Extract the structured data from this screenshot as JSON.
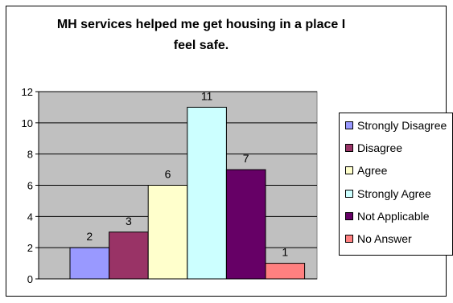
{
  "chart_data": {
    "type": "bar",
    "title": "MH services helped me get housing in a place I feel safe.",
    "categories": [
      "Strongly Disagree",
      "Disagree",
      "Agree",
      "Strongly Agree",
      "Not Applicable",
      "No Answer"
    ],
    "values": [
      2,
      3,
      6,
      11,
      7,
      1
    ],
    "data_labels": [
      "2",
      "3",
      "6",
      "11",
      "7",
      "1"
    ],
    "colors": [
      "#9999FF",
      "#993366",
      "#FFFFCC",
      "#CCFFFF",
      "#660066",
      "#FF8080"
    ],
    "ylim": [
      0,
      12
    ],
    "yticks": [
      0,
      2,
      4,
      6,
      8,
      10,
      12
    ],
    "ytick_labels": [
      "0",
      "2",
      "4",
      "6",
      "8",
      "10",
      "12"
    ],
    "plot_background": "#C0C0C0",
    "grid": true,
    "legend_position": "right"
  }
}
